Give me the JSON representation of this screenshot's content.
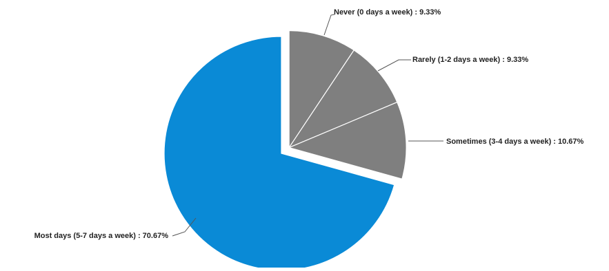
{
  "chart_data": {
    "type": "pie",
    "slices": [
      {
        "label": "Never (0 days a week) : 9.33%",
        "value": 9.33,
        "color": "#7f7f7f",
        "exploded": true
      },
      {
        "label": "Rarely (1-2 days a week) : 9.33%",
        "value": 9.33,
        "color": "#7f7f7f",
        "exploded": true
      },
      {
        "label": "Sometimes (3-4 days a week) : 10.67%",
        "value": 10.67,
        "color": "#7f7f7f",
        "exploded": true
      },
      {
        "label": "Most days (5-7 days a week) : 70.67%",
        "value": 70.67,
        "color": "#0a8ad6",
        "exploded": false
      }
    ],
    "slice_border_color": "#ffffff",
    "leader_line_color": "#555555"
  }
}
